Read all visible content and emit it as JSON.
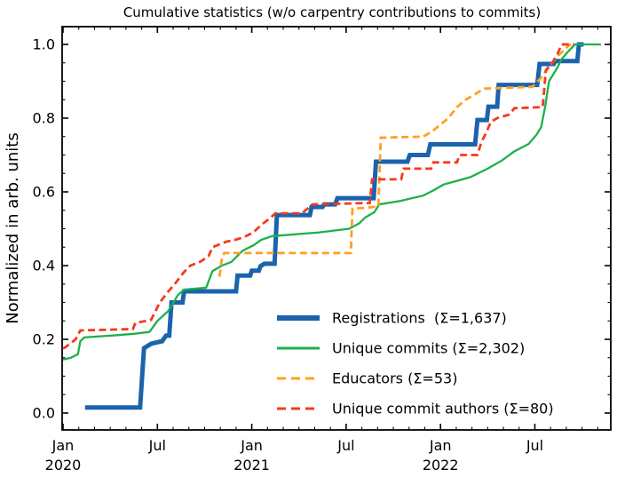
{
  "chart_data": {
    "type": "line",
    "title": "Cumulative statistics (w/o carpentry contributions to commits)",
    "ylabel": "Normalized in arb. units",
    "xlabel": "",
    "x_unit": "months since 2020-01 (0 = Jan 2020)",
    "xlim_months": [
      -0.06,
      34.82
    ],
    "ylim": [
      -0.046,
      1.048
    ],
    "grid": false,
    "tick_direction": "in",
    "legend_position": "lower-right-inside",
    "x_ticks_major": [
      {
        "m": 0,
        "line1": "Jan",
        "line2": "2020"
      },
      {
        "m": 6,
        "line1": "Jul",
        "line2": ""
      },
      {
        "m": 12,
        "line1": "Jan",
        "line2": "2021"
      },
      {
        "m": 18,
        "line1": "Jul",
        "line2": ""
      },
      {
        "m": 24,
        "line1": "Jan",
        "line2": "2022"
      },
      {
        "m": 30,
        "line1": "Jul",
        "line2": ""
      }
    ],
    "x_minor_tick_every_month": true,
    "x_minor_last_month": 34,
    "y_ticks_major": [
      {
        "v": 0.0,
        "label": "0.0"
      },
      {
        "v": 0.2,
        "label": "0.2"
      },
      {
        "v": 0.4,
        "label": "0.4"
      },
      {
        "v": 0.6,
        "label": "0.6"
      },
      {
        "v": 0.8,
        "label": "0.8"
      },
      {
        "v": 1.0,
        "label": "1.0"
      }
    ],
    "y_minor_step": 0.05,
    "series": [
      {
        "name": "registrations",
        "legend_label": "Registrations  (Σ=1,637)",
        "total": "1,637",
        "color": "#1a63ad",
        "style": "solid",
        "width": 5,
        "points": [
          [
            1.4,
            0.015
          ],
          [
            4.9,
            0.015
          ],
          [
            5.15,
            0.176
          ],
          [
            5.6,
            0.188
          ],
          [
            6.3,
            0.195
          ],
          [
            6.55,
            0.21
          ],
          [
            6.75,
            0.21
          ],
          [
            6.9,
            0.3
          ],
          [
            7.6,
            0.3
          ],
          [
            7.7,
            0.33
          ],
          [
            11.0,
            0.33
          ],
          [
            11.1,
            0.373
          ],
          [
            11.9,
            0.373
          ],
          [
            12.0,
            0.386
          ],
          [
            12.45,
            0.386
          ],
          [
            12.55,
            0.398
          ],
          [
            12.8,
            0.405
          ],
          [
            13.45,
            0.405
          ],
          [
            13.6,
            0.537
          ],
          [
            15.7,
            0.537
          ],
          [
            15.8,
            0.559
          ],
          [
            16.5,
            0.559
          ],
          [
            16.6,
            0.566
          ],
          [
            17.3,
            0.566
          ],
          [
            17.45,
            0.583
          ],
          [
            19.75,
            0.583
          ],
          [
            19.9,
            0.682
          ],
          [
            21.9,
            0.682
          ],
          [
            22.05,
            0.7
          ],
          [
            23.2,
            0.7
          ],
          [
            23.35,
            0.729
          ],
          [
            26.2,
            0.729
          ],
          [
            26.35,
            0.795
          ],
          [
            26.95,
            0.795
          ],
          [
            27.05,
            0.831
          ],
          [
            27.6,
            0.831
          ],
          [
            27.7,
            0.89
          ],
          [
            30.15,
            0.89
          ],
          [
            30.3,
            0.947
          ],
          [
            31.2,
            0.947
          ],
          [
            31.3,
            0.955
          ],
          [
            32.7,
            0.955
          ],
          [
            32.8,
            1.0
          ],
          [
            33.1,
            1.0
          ]
        ]
      },
      {
        "name": "unique-commits",
        "legend_label": "Unique commits (Σ=2,302)",
        "total": "2,302",
        "color": "#1db04b",
        "style": "solid",
        "width": 2.3,
        "points": [
          [
            0,
            0.145
          ],
          [
            0.5,
            0.15
          ],
          [
            0.95,
            0.16
          ],
          [
            1.1,
            0.195
          ],
          [
            1.35,
            0.205
          ],
          [
            3.0,
            0.21
          ],
          [
            4.5,
            0.215
          ],
          [
            5.5,
            0.22
          ],
          [
            6.0,
            0.25
          ],
          [
            6.7,
            0.277
          ],
          [
            7.3,
            0.32
          ],
          [
            7.7,
            0.335
          ],
          [
            9.1,
            0.34
          ],
          [
            9.5,
            0.385
          ],
          [
            10.1,
            0.4
          ],
          [
            10.7,
            0.41
          ],
          [
            11.4,
            0.44
          ],
          [
            12.1,
            0.455
          ],
          [
            12.6,
            0.47
          ],
          [
            13.3,
            0.48
          ],
          [
            16.3,
            0.49
          ],
          [
            18.2,
            0.5
          ],
          [
            18.85,
            0.515
          ],
          [
            19.2,
            0.53
          ],
          [
            19.8,
            0.545
          ],
          [
            20.1,
            0.566
          ],
          [
            21.4,
            0.575
          ],
          [
            22.9,
            0.59
          ],
          [
            23.6,
            0.605
          ],
          [
            24.2,
            0.62
          ],
          [
            25.05,
            0.63
          ],
          [
            25.9,
            0.64
          ],
          [
            27.0,
            0.663
          ],
          [
            27.9,
            0.685
          ],
          [
            28.7,
            0.71
          ],
          [
            29.6,
            0.73
          ],
          [
            30.1,
            0.755
          ],
          [
            30.4,
            0.776
          ],
          [
            30.65,
            0.83
          ],
          [
            30.9,
            0.9
          ],
          [
            31.4,
            0.935
          ],
          [
            31.7,
            0.96
          ],
          [
            32.1,
            0.98
          ],
          [
            32.55,
            1.0
          ],
          [
            34.2,
            1.0
          ]
        ]
      },
      {
        "name": "educators",
        "legend_label": "Educators (Σ=53)",
        "total": "53",
        "color": "#ffa021",
        "style": "dashed",
        "width": 2.8,
        "points": [
          [
            9.95,
            0.37
          ],
          [
            10.1,
            0.42
          ],
          [
            10.25,
            0.434
          ],
          [
            18.3,
            0.434
          ],
          [
            18.4,
            0.554
          ],
          [
            20.05,
            0.56
          ],
          [
            20.2,
            0.747
          ],
          [
            22.9,
            0.75
          ],
          [
            23.5,
            0.765
          ],
          [
            24.0,
            0.783
          ],
          [
            24.5,
            0.8
          ],
          [
            25.05,
            0.83
          ],
          [
            25.6,
            0.85
          ],
          [
            26.2,
            0.865
          ],
          [
            26.75,
            0.88
          ],
          [
            29.85,
            0.885
          ],
          [
            30.4,
            0.91
          ],
          [
            31.0,
            0.945
          ],
          [
            31.5,
            0.97
          ],
          [
            32.1,
            0.995
          ],
          [
            32.3,
            1.0
          ]
        ]
      },
      {
        "name": "unique-commit-authors",
        "legend_label": "Unique commit authors (Σ=80)",
        "total": "80",
        "color": "#f43a1e",
        "style": "dashed",
        "width": 2.8,
        "points": [
          [
            0,
            0.175
          ],
          [
            0.2,
            0.18
          ],
          [
            0.6,
            0.193
          ],
          [
            0.8,
            0.2
          ],
          [
            1.1,
            0.224
          ],
          [
            4.45,
            0.228
          ],
          [
            4.6,
            0.245
          ],
          [
            5.3,
            0.25
          ],
          [
            5.6,
            0.253
          ],
          [
            6.15,
            0.3
          ],
          [
            6.7,
            0.33
          ],
          [
            7.1,
            0.35
          ],
          [
            7.55,
            0.375
          ],
          [
            7.85,
            0.39
          ],
          [
            8.1,
            0.4
          ],
          [
            8.7,
            0.41
          ],
          [
            9.25,
            0.425
          ],
          [
            9.5,
            0.45
          ],
          [
            10.4,
            0.465
          ],
          [
            10.95,
            0.47
          ],
          [
            11.5,
            0.477
          ],
          [
            12.1,
            0.49
          ],
          [
            12.6,
            0.51
          ],
          [
            13.2,
            0.53
          ],
          [
            13.5,
            0.542
          ],
          [
            15.2,
            0.542
          ],
          [
            15.5,
            0.553
          ],
          [
            15.85,
            0.566
          ],
          [
            19.5,
            0.57
          ],
          [
            19.65,
            0.634
          ],
          [
            21.5,
            0.634
          ],
          [
            21.65,
            0.663
          ],
          [
            23.4,
            0.663
          ],
          [
            23.55,
            0.68
          ],
          [
            25.05,
            0.68
          ],
          [
            25.2,
            0.7
          ],
          [
            26.35,
            0.7
          ],
          [
            26.6,
            0.735
          ],
          [
            26.9,
            0.76
          ],
          [
            27.2,
            0.79
          ],
          [
            27.6,
            0.8
          ],
          [
            28.4,
            0.81
          ],
          [
            28.7,
            0.827
          ],
          [
            30.5,
            0.83
          ],
          [
            30.7,
            0.93
          ],
          [
            31.1,
            0.95
          ],
          [
            31.45,
            0.975
          ],
          [
            31.7,
            1.0
          ],
          [
            32.5,
            1.0
          ]
        ]
      }
    ]
  }
}
